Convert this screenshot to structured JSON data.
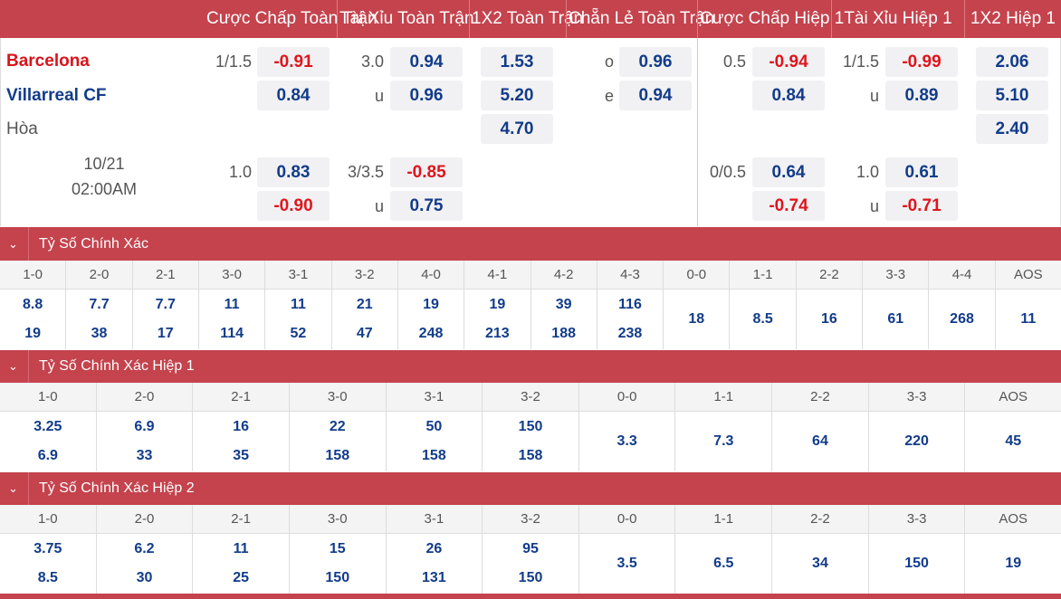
{
  "header": {
    "cols": [
      "Cược Chấp Toàn Trận",
      "Tài Xỉu Toàn Trận",
      "1X2 Toàn Trận",
      "Chẵn Lẻ Toàn Trận",
      "Cược Chấp Hiệp 1",
      "Tài Xỉu Hiệp 1",
      "1X2 Hiệp 1"
    ]
  },
  "match": {
    "home": "Barcelona",
    "away": "Villarreal CF",
    "draw": "Hòa",
    "date": "10/21",
    "time": "02:00AM"
  },
  "odds": {
    "hdp_ft": {
      "line1": "1/1.5",
      "home1": "-0.91",
      "away1": "0.84",
      "line2": "1.0",
      "home2": "0.83",
      "away2": "-0.90"
    },
    "ou_ft": {
      "line1": "3.0",
      "over1": "0.94",
      "u1": "u",
      "under1": "0.96",
      "line2": "3/3.5",
      "over2": "-0.85",
      "u2": "u",
      "under2": "0.75"
    },
    "x12_ft": {
      "home": "1.53",
      "away": "5.20",
      "draw": "4.70"
    },
    "oe_ft": {
      "o_label": "o",
      "odd": "0.96",
      "e_label": "e",
      "even": "0.94"
    },
    "hdp_h1": {
      "line1": "0.5",
      "home1": "-0.94",
      "away1": "0.84",
      "line2": "0/0.5",
      "home2": "0.64",
      "away2": "-0.74"
    },
    "ou_h1": {
      "line1": "1/1.5",
      "over1": "-0.99",
      "u1": "u",
      "under1": "0.89",
      "line2": "1.0",
      "over2": "0.61",
      "u2": "u",
      "under2": "-0.71"
    },
    "x12_h1": {
      "home": "2.06",
      "away": "5.10",
      "draw": "2.40"
    }
  },
  "sections": [
    {
      "title": "Tỷ Số Chính Xác",
      "scores": [
        "1-0",
        "2-0",
        "2-1",
        "3-0",
        "3-1",
        "3-2",
        "4-0",
        "4-1",
        "4-2",
        "4-3",
        "0-0",
        "1-1",
        "2-2",
        "3-3",
        "4-4",
        "AOS"
      ],
      "odds": [
        [
          "8.8",
          "19"
        ],
        [
          "7.7",
          "38"
        ],
        [
          "7.7",
          "17"
        ],
        [
          "11",
          "114"
        ],
        [
          "11",
          "52"
        ],
        [
          "21",
          "47"
        ],
        [
          "19",
          "248"
        ],
        [
          "19",
          "213"
        ],
        [
          "39",
          "188"
        ],
        [
          "116",
          "238"
        ],
        [
          "18"
        ],
        [
          "8.5"
        ],
        [
          "16"
        ],
        [
          "61"
        ],
        [
          "268"
        ],
        [
          "11"
        ]
      ]
    },
    {
      "title": "Tỷ Số Chính Xác Hiệp 1",
      "scores": [
        "1-0",
        "2-0",
        "2-1",
        "3-0",
        "3-1",
        "3-2",
        "0-0",
        "1-1",
        "2-2",
        "3-3",
        "AOS"
      ],
      "odds": [
        [
          "3.25",
          "6.9"
        ],
        [
          "6.9",
          "33"
        ],
        [
          "16",
          "35"
        ],
        [
          "22",
          "158"
        ],
        [
          "50",
          "158"
        ],
        [
          "150",
          "158"
        ],
        [
          "3.3"
        ],
        [
          "7.3"
        ],
        [
          "64"
        ],
        [
          "220"
        ],
        [
          "45"
        ]
      ]
    },
    {
      "title": "Tỷ Số Chính Xác Hiệp 2",
      "scores": [
        "1-0",
        "2-0",
        "2-1",
        "3-0",
        "3-1",
        "3-2",
        "0-0",
        "1-1",
        "2-2",
        "3-3",
        "AOS"
      ],
      "odds": [
        [
          "3.75",
          "8.5"
        ],
        [
          "6.2",
          "30"
        ],
        [
          "11",
          "25"
        ],
        [
          "15",
          "150"
        ],
        [
          "26",
          "131"
        ],
        [
          "95",
          "150"
        ],
        [
          "3.5"
        ],
        [
          "6.5"
        ],
        [
          "34"
        ],
        [
          "150"
        ],
        [
          "19"
        ]
      ]
    }
  ]
}
